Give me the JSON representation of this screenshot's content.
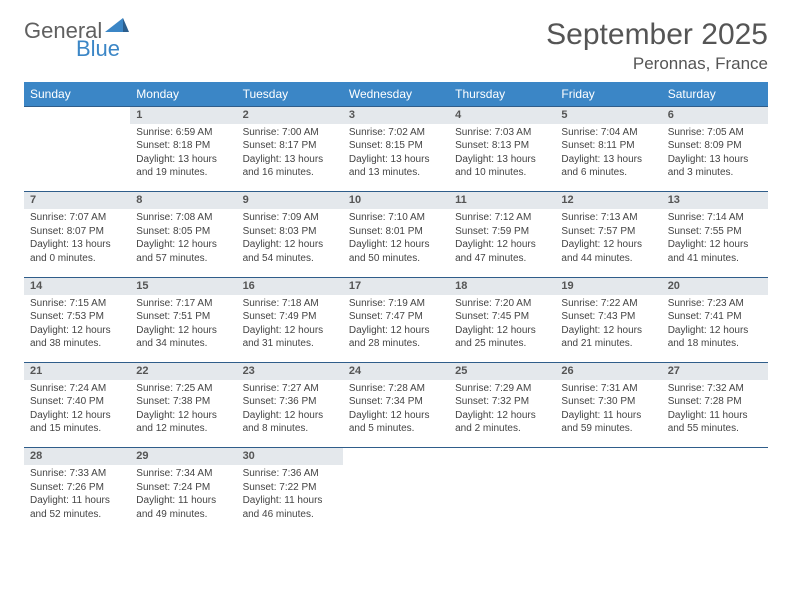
{
  "brand": {
    "part1": "General",
    "part2": "Blue",
    "accent": "#3b86c6",
    "gray": "#606060"
  },
  "title": "September 2025",
  "location": "Peronnas, France",
  "header_bg": "#3b86c6",
  "daynum_bg": "#e4e8ec",
  "row_border": "#2f5d8a",
  "weekdays": [
    "Sunday",
    "Monday",
    "Tuesday",
    "Wednesday",
    "Thursday",
    "Friday",
    "Saturday"
  ],
  "weeks": [
    {
      "nums": [
        "",
        "1",
        "2",
        "3",
        "4",
        "5",
        "6"
      ],
      "cells": [
        null,
        {
          "sunrise": "Sunrise: 6:59 AM",
          "sunset": "Sunset: 8:18 PM",
          "day1": "Daylight: 13 hours",
          "day2": "and 19 minutes."
        },
        {
          "sunrise": "Sunrise: 7:00 AM",
          "sunset": "Sunset: 8:17 PM",
          "day1": "Daylight: 13 hours",
          "day2": "and 16 minutes."
        },
        {
          "sunrise": "Sunrise: 7:02 AM",
          "sunset": "Sunset: 8:15 PM",
          "day1": "Daylight: 13 hours",
          "day2": "and 13 minutes."
        },
        {
          "sunrise": "Sunrise: 7:03 AM",
          "sunset": "Sunset: 8:13 PM",
          "day1": "Daylight: 13 hours",
          "day2": "and 10 minutes."
        },
        {
          "sunrise": "Sunrise: 7:04 AM",
          "sunset": "Sunset: 8:11 PM",
          "day1": "Daylight: 13 hours",
          "day2": "and 6 minutes."
        },
        {
          "sunrise": "Sunrise: 7:05 AM",
          "sunset": "Sunset: 8:09 PM",
          "day1": "Daylight: 13 hours",
          "day2": "and 3 minutes."
        }
      ]
    },
    {
      "nums": [
        "7",
        "8",
        "9",
        "10",
        "11",
        "12",
        "13"
      ],
      "cells": [
        {
          "sunrise": "Sunrise: 7:07 AM",
          "sunset": "Sunset: 8:07 PM",
          "day1": "Daylight: 13 hours",
          "day2": "and 0 minutes."
        },
        {
          "sunrise": "Sunrise: 7:08 AM",
          "sunset": "Sunset: 8:05 PM",
          "day1": "Daylight: 12 hours",
          "day2": "and 57 minutes."
        },
        {
          "sunrise": "Sunrise: 7:09 AM",
          "sunset": "Sunset: 8:03 PM",
          "day1": "Daylight: 12 hours",
          "day2": "and 54 minutes."
        },
        {
          "sunrise": "Sunrise: 7:10 AM",
          "sunset": "Sunset: 8:01 PM",
          "day1": "Daylight: 12 hours",
          "day2": "and 50 minutes."
        },
        {
          "sunrise": "Sunrise: 7:12 AM",
          "sunset": "Sunset: 7:59 PM",
          "day1": "Daylight: 12 hours",
          "day2": "and 47 minutes."
        },
        {
          "sunrise": "Sunrise: 7:13 AM",
          "sunset": "Sunset: 7:57 PM",
          "day1": "Daylight: 12 hours",
          "day2": "and 44 minutes."
        },
        {
          "sunrise": "Sunrise: 7:14 AM",
          "sunset": "Sunset: 7:55 PM",
          "day1": "Daylight: 12 hours",
          "day2": "and 41 minutes."
        }
      ]
    },
    {
      "nums": [
        "14",
        "15",
        "16",
        "17",
        "18",
        "19",
        "20"
      ],
      "cells": [
        {
          "sunrise": "Sunrise: 7:15 AM",
          "sunset": "Sunset: 7:53 PM",
          "day1": "Daylight: 12 hours",
          "day2": "and 38 minutes."
        },
        {
          "sunrise": "Sunrise: 7:17 AM",
          "sunset": "Sunset: 7:51 PM",
          "day1": "Daylight: 12 hours",
          "day2": "and 34 minutes."
        },
        {
          "sunrise": "Sunrise: 7:18 AM",
          "sunset": "Sunset: 7:49 PM",
          "day1": "Daylight: 12 hours",
          "day2": "and 31 minutes."
        },
        {
          "sunrise": "Sunrise: 7:19 AM",
          "sunset": "Sunset: 7:47 PM",
          "day1": "Daylight: 12 hours",
          "day2": "and 28 minutes."
        },
        {
          "sunrise": "Sunrise: 7:20 AM",
          "sunset": "Sunset: 7:45 PM",
          "day1": "Daylight: 12 hours",
          "day2": "and 25 minutes."
        },
        {
          "sunrise": "Sunrise: 7:22 AM",
          "sunset": "Sunset: 7:43 PM",
          "day1": "Daylight: 12 hours",
          "day2": "and 21 minutes."
        },
        {
          "sunrise": "Sunrise: 7:23 AM",
          "sunset": "Sunset: 7:41 PM",
          "day1": "Daylight: 12 hours",
          "day2": "and 18 minutes."
        }
      ]
    },
    {
      "nums": [
        "21",
        "22",
        "23",
        "24",
        "25",
        "26",
        "27"
      ],
      "cells": [
        {
          "sunrise": "Sunrise: 7:24 AM",
          "sunset": "Sunset: 7:40 PM",
          "day1": "Daylight: 12 hours",
          "day2": "and 15 minutes."
        },
        {
          "sunrise": "Sunrise: 7:25 AM",
          "sunset": "Sunset: 7:38 PM",
          "day1": "Daylight: 12 hours",
          "day2": "and 12 minutes."
        },
        {
          "sunrise": "Sunrise: 7:27 AM",
          "sunset": "Sunset: 7:36 PM",
          "day1": "Daylight: 12 hours",
          "day2": "and 8 minutes."
        },
        {
          "sunrise": "Sunrise: 7:28 AM",
          "sunset": "Sunset: 7:34 PM",
          "day1": "Daylight: 12 hours",
          "day2": "and 5 minutes."
        },
        {
          "sunrise": "Sunrise: 7:29 AM",
          "sunset": "Sunset: 7:32 PM",
          "day1": "Daylight: 12 hours",
          "day2": "and 2 minutes."
        },
        {
          "sunrise": "Sunrise: 7:31 AM",
          "sunset": "Sunset: 7:30 PM",
          "day1": "Daylight: 11 hours",
          "day2": "and 59 minutes."
        },
        {
          "sunrise": "Sunrise: 7:32 AM",
          "sunset": "Sunset: 7:28 PM",
          "day1": "Daylight: 11 hours",
          "day2": "and 55 minutes."
        }
      ]
    },
    {
      "nums": [
        "28",
        "29",
        "30",
        "",
        "",
        "",
        ""
      ],
      "cells": [
        {
          "sunrise": "Sunrise: 7:33 AM",
          "sunset": "Sunset: 7:26 PM",
          "day1": "Daylight: 11 hours",
          "day2": "and 52 minutes."
        },
        {
          "sunrise": "Sunrise: 7:34 AM",
          "sunset": "Sunset: 7:24 PM",
          "day1": "Daylight: 11 hours",
          "day2": "and 49 minutes."
        },
        {
          "sunrise": "Sunrise: 7:36 AM",
          "sunset": "Sunset: 7:22 PM",
          "day1": "Daylight: 11 hours",
          "day2": "and 46 minutes."
        },
        null,
        null,
        null,
        null
      ]
    }
  ]
}
